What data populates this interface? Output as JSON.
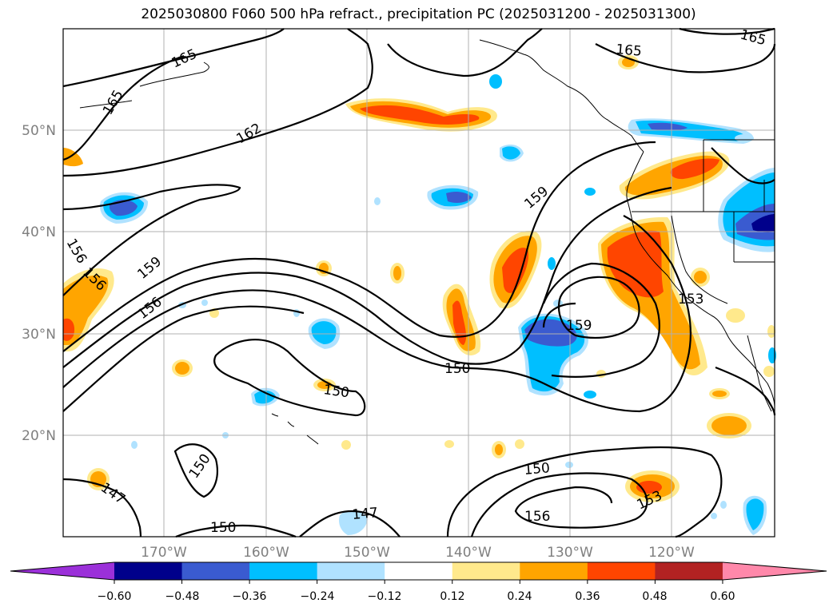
{
  "title": "2025030800 F060 500 hPa refract., precipitation PC (2025031200 - 2025031300)",
  "lat_labels": [
    "50°N",
    "40°N",
    "30°N",
    "20°N"
  ],
  "lon_labels": [
    "170°W",
    "160°W",
    "150°W",
    "140°W",
    "130°W",
    "120°W"
  ],
  "contour_labels": [
    "165",
    "165",
    "165",
    "165",
    "162",
    "159",
    "159",
    "159",
    "156",
    "156",
    "156",
    "156",
    "153",
    "153",
    "150",
    "150",
    "150",
    "150",
    "150",
    "147",
    "147"
  ],
  "colorbar": {
    "ticks": [
      "−0.60",
      "−0.48",
      "−0.36",
      "−0.24",
      "−0.12",
      "0.12",
      "0.24",
      "0.36",
      "0.48",
      "0.60"
    ],
    "colors": [
      "#9b30d9",
      "#00008b",
      "#3a5bd0",
      "#00bfff",
      "#b0e2ff",
      "#ffffff",
      "#ffe98c",
      "#ffa500",
      "#ff4500",
      "#b22222",
      "#ff88aa"
    ]
  }
}
